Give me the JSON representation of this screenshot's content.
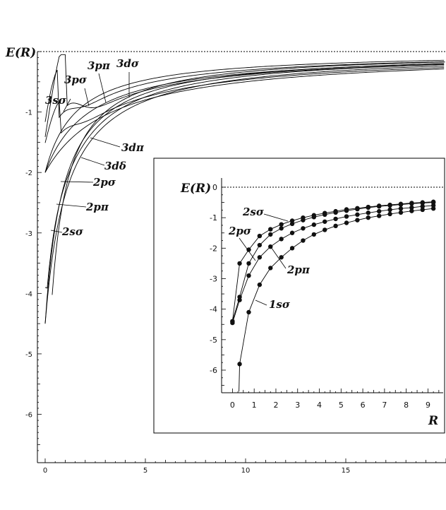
{
  "chart_data": [
    {
      "type": "line",
      "ylabel": "E(R)",
      "xlabel": "",
      "xlim": [
        0,
        20
      ],
      "ylim": [
        -6.8,
        0
      ],
      "xticks": [
        "0",
        "5",
        "10",
        "15"
      ],
      "yticks": [
        "-1",
        "-2",
        "-3",
        "-4",
        "-5",
        "-6"
      ],
      "reference_line": {
        "y": 0,
        "style": "dashed"
      },
      "series": [
        {
          "name": "1sσ",
          "asymptote": -6.7,
          "slope": 1.9,
          "amp": 0,
          "shift": 0
        },
        {
          "name": "2sσ",
          "asymptote": -4.5,
          "slope": 1.1,
          "amp": 0,
          "shift": 0
        },
        {
          "name": "2pσ",
          "asymptote": -4.5,
          "slope": 1.0,
          "amp": 0.6,
          "shift": 0
        },
        {
          "name": "2pπ",
          "asymptote": -4.5,
          "slope": 0.9,
          "amp": 0,
          "shift": 0
        },
        {
          "name": "3sσ",
          "asymptote": -2.0,
          "slope": 0.65,
          "amp": 0,
          "shift": 0
        },
        {
          "name": "3pσ",
          "asymptote": -2.0,
          "slope": 0.55,
          "amp": 1.2,
          "shift": 0.6
        },
        {
          "name": "3pπ",
          "asymptote": -2.0,
          "slope": 0.45,
          "amp": 0,
          "shift": 0
        },
        {
          "name": "3dσ",
          "asymptote": -2.0,
          "slope": 0.42,
          "amp": 1.6,
          "shift": 1.0
        },
        {
          "name": "3dπ",
          "asymptote": -2.0,
          "slope": 0.33,
          "amp": 0.8,
          "shift": 0.7
        },
        {
          "name": "3dδ",
          "asymptote": -2.0,
          "slope": 0.3,
          "amp": 0,
          "shift": 0
        }
      ]
    },
    {
      "type": "scatter",
      "ylabel": "E(R)",
      "xlabel": "R",
      "xlim": [
        -0.5,
        9.7
      ],
      "ylim": [
        -6.8,
        0.2
      ],
      "xticks": [
        "0",
        "1",
        "2",
        "3",
        "4",
        "5",
        "6",
        "7",
        "8",
        "9"
      ],
      "yticks": [
        "0",
        "-1",
        "-2",
        "-3",
        "-4",
        "-5",
        "-6"
      ],
      "reference_line": {
        "y": 0,
        "style": "dashed"
      },
      "series": [
        {
          "name": "1sσ",
          "x": [
            0.33,
            0.75,
            1.25,
            1.75,
            2.25,
            2.75,
            3.25,
            3.75,
            4.25,
            4.75,
            5.25,
            5.75,
            6.25,
            6.75,
            7.25,
            7.75,
            8.25,
            8.75,
            9.25
          ],
          "y": [
            -5.8,
            -4.1,
            -3.2,
            -2.65,
            -2.3,
            -2.0,
            -1.75,
            -1.55,
            -1.4,
            -1.27,
            -1.17,
            -1.08,
            -1.0,
            -0.94,
            -0.88,
            -0.83,
            -0.78,
            -0.74,
            -0.7
          ]
        },
        {
          "name": "2sσ",
          "x": [
            0.0,
            0.33,
            0.75,
            1.25,
            1.75,
            2.25,
            2.75,
            3.25,
            3.75,
            4.25,
            4.75,
            5.25,
            5.75,
            6.25,
            6.75,
            7.25,
            7.75,
            8.25,
            8.75,
            9.25
          ],
          "y": [
            -4.45,
            -3.7,
            -2.9,
            -2.3,
            -1.95,
            -1.7,
            -1.5,
            -1.35,
            -1.23,
            -1.13,
            -1.04,
            -0.96,
            -0.9,
            -0.84,
            -0.79,
            -0.74,
            -0.7,
            -0.67,
            -0.63,
            -0.6
          ]
        },
        {
          "name": "2pσ",
          "x": [
            0.0,
            0.33,
            0.75,
            1.25,
            1.75,
            2.25,
            2.75,
            3.25,
            3.75,
            4.25,
            4.75,
            5.25,
            5.75,
            6.25,
            6.75,
            7.25,
            7.75,
            8.25,
            8.75,
            9.25
          ],
          "y": [
            -4.4,
            -3.6,
            -2.5,
            -1.9,
            -1.55,
            -1.35,
            -1.2,
            -1.08,
            -0.98,
            -0.9,
            -0.83,
            -0.77,
            -0.72,
            -0.67,
            -0.63,
            -0.6,
            -0.57,
            -0.54,
            -0.52,
            -0.5
          ]
        },
        {
          "name": "2pπ",
          "x": [
            0.0,
            0.33,
            0.75,
            1.25,
            1.75,
            2.25,
            2.75,
            3.25,
            3.75,
            4.25,
            4.75,
            5.25,
            5.75,
            6.25,
            6.75,
            7.25,
            7.75,
            8.25,
            8.75,
            9.25
          ],
          "y": [
            -4.4,
            -2.5,
            -2.05,
            -1.6,
            -1.38,
            -1.22,
            -1.1,
            -1.0,
            -0.92,
            -0.85,
            -0.79,
            -0.73,
            -0.69,
            -0.65,
            -0.61,
            -0.58,
            -0.55,
            -0.52,
            -0.5,
            -0.48
          ]
        }
      ]
    }
  ],
  "labels": {
    "main_ylabel": "E(R)",
    "inset_ylabel": "E(R)",
    "inset_xlabel": "R"
  }
}
